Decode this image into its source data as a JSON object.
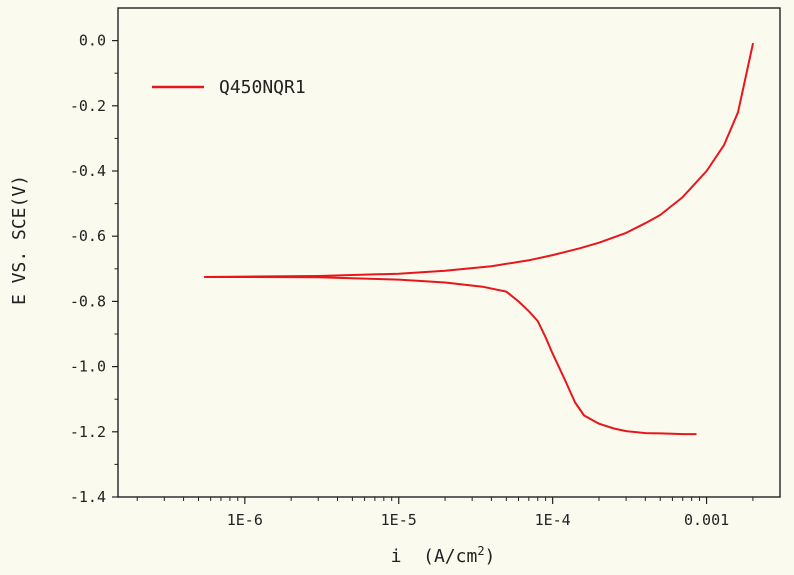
{
  "chart_data": {
    "type": "line",
    "title": "",
    "xlabel": "i (A/cm2)",
    "xlabel_main": "i  (A/cm",
    "xlabel_sup": "2",
    "xlabel_close": ")",
    "ylabel": "E VS. SCE(V)",
    "xscale": "log",
    "xlim": [
      1.5e-07,
      0.003
    ],
    "ylim": [
      -1.4,
      0.1
    ],
    "x_ticks": [
      1e-06,
      1e-05,
      0.0001,
      0.001
    ],
    "x_tick_labels": [
      "1E-6",
      "1E-5",
      "1E-4",
      "0.001"
    ],
    "y_ticks": [
      0.0,
      -0.2,
      -0.4,
      -0.6,
      -0.8,
      -1.0,
      -1.2,
      -1.4
    ],
    "y_tick_labels": [
      "0.0",
      "-0.2",
      "-0.4",
      "-0.6",
      "-0.8",
      "-1.0",
      "-1.2",
      "-1.4"
    ],
    "grid": false,
    "legend_position": "top-left",
    "series": [
      {
        "name": "Q450NQR1",
        "color": "#e8161b",
        "anodic_branch": {
          "x": [
            5.5e-07,
            1e-06,
            3e-06,
            1e-05,
            2e-05,
            4e-05,
            7e-05,
            0.0001,
            0.00015,
            0.0002,
            0.0003,
            0.0004,
            0.0005,
            0.0007,
            0.001,
            0.0013,
            0.0016,
            0.002
          ],
          "y": [
            -0.725,
            -0.724,
            -0.722,
            -0.715,
            -0.706,
            -0.692,
            -0.674,
            -0.658,
            -0.637,
            -0.62,
            -0.59,
            -0.56,
            -0.535,
            -0.48,
            -0.4,
            -0.32,
            -0.22,
            -0.01
          ]
        },
        "cathodic_branch": {
          "x": [
            5.5e-07,
            1e-06,
            3e-06,
            1e-05,
            2e-05,
            3.5e-05,
            5e-05,
            6e-05,
            7e-05,
            8e-05,
            9e-05,
            0.0001,
            0.00012,
            0.00014,
            0.00016,
            0.0002,
            0.00025,
            0.0003,
            0.0004,
            0.0005,
            0.0006,
            0.0007,
            0.00085
          ],
          "y": [
            -0.725,
            -0.725,
            -0.726,
            -0.733,
            -0.742,
            -0.755,
            -0.77,
            -0.8,
            -0.83,
            -0.86,
            -0.91,
            -0.96,
            -1.04,
            -1.11,
            -1.15,
            -1.175,
            -1.19,
            -1.198,
            -1.204,
            -1.205,
            -1.206,
            -1.207,
            -1.207
          ]
        }
      }
    ]
  }
}
